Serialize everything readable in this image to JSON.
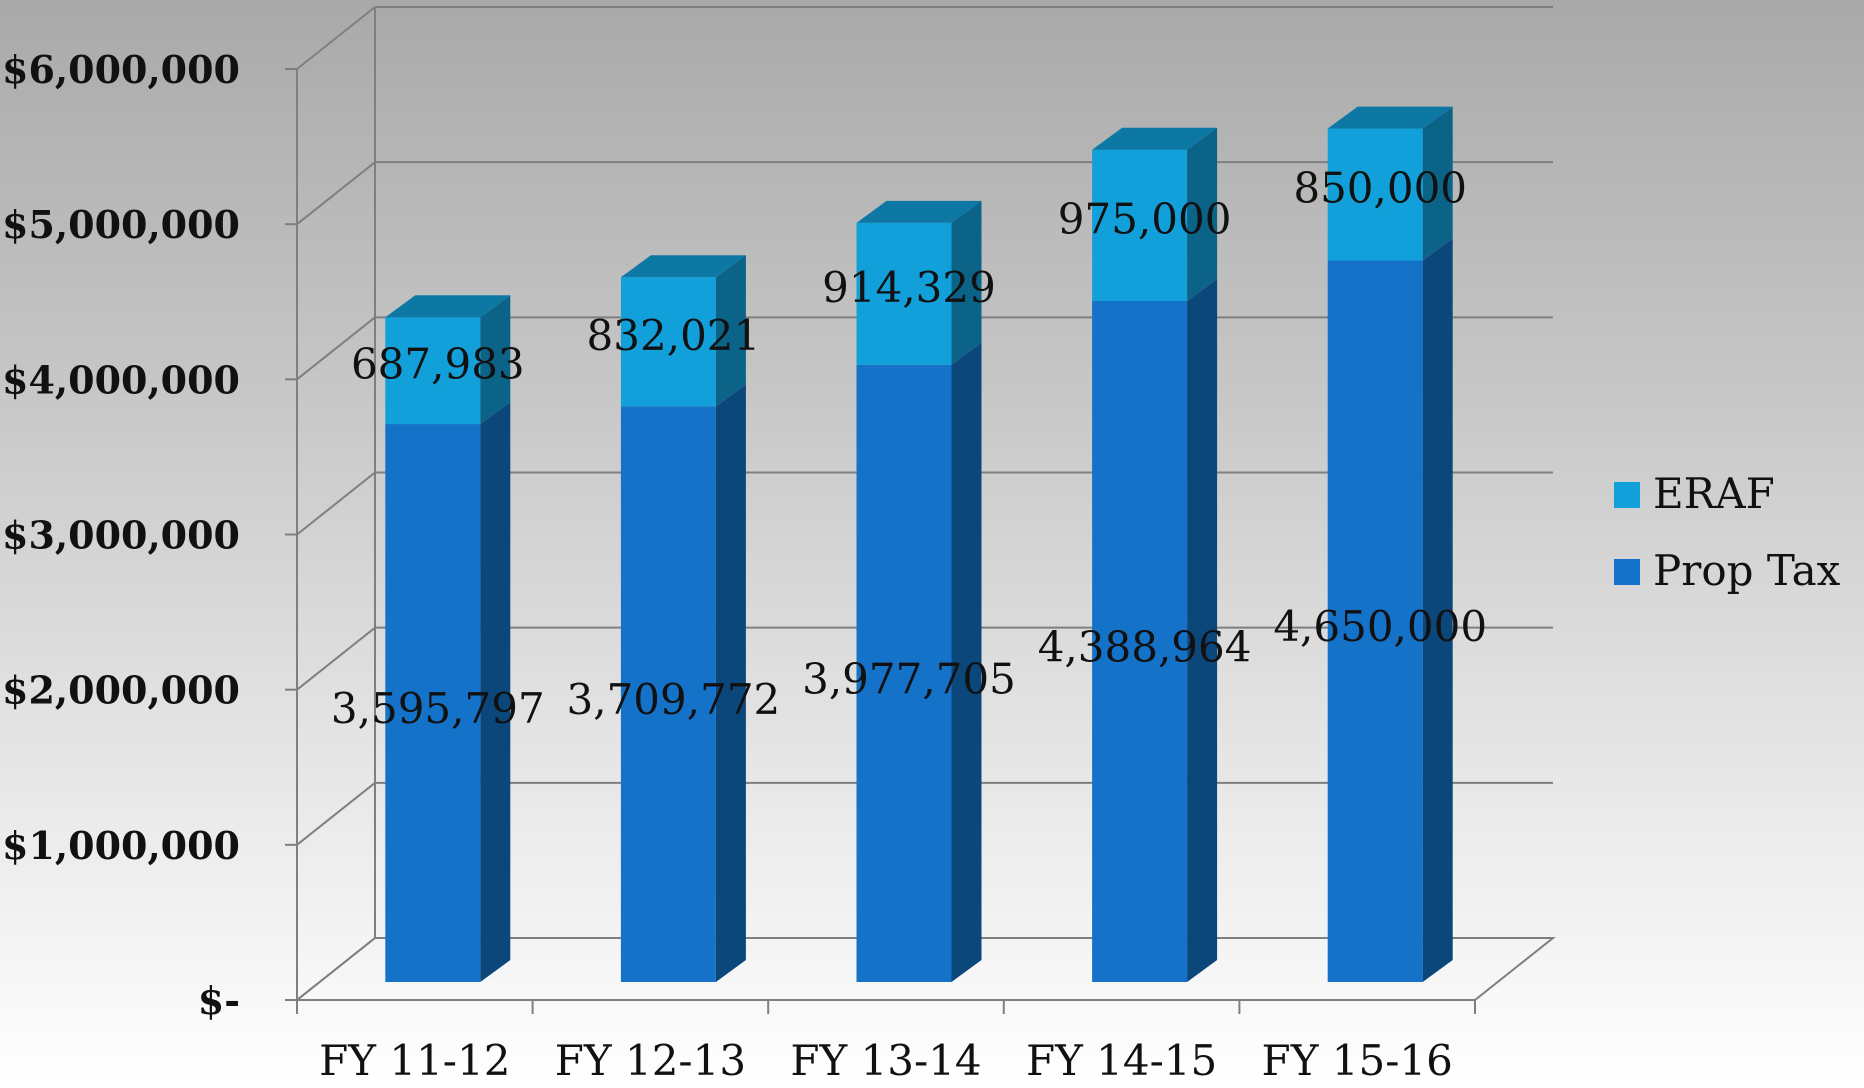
{
  "chart_data": {
    "type": "bar",
    "stacked": true,
    "style": "3d-column",
    "categories": [
      "FY 11-12",
      "FY 12-13",
      "FY 13-14",
      "FY 14-15",
      "FY 15-16"
    ],
    "series": [
      {
        "name": "Prop Tax",
        "color": "#1472c8",
        "values": [
          3595797,
          3709772,
          3977705,
          4388964,
          4650000
        ],
        "labels": [
          "3,595,797",
          "3,709,772",
          "3,977,705",
          "4,388,964",
          "4,650,000"
        ]
      },
      {
        "name": "ERAF",
        "color": "#12a0db",
        "values": [
          687983,
          832021,
          914329,
          975000,
          850000
        ],
        "labels": [
          "687,983",
          "832,021",
          "914,329",
          "975,000",
          "850,000"
        ]
      }
    ],
    "ylim": [
      0,
      6000000
    ],
    "yticks": [
      0,
      1000000,
      2000000,
      3000000,
      4000000,
      5000000,
      6000000
    ],
    "ytick_labels": [
      "$-",
      "$1,000,000",
      "$2,000,000",
      "$3,000,000",
      "$4,000,000",
      "$5,000,000",
      "$6,000,000"
    ],
    "legend": {
      "position": "right",
      "entries": [
        "ERAF",
        "Prop Tax"
      ]
    },
    "grid": true,
    "title": "",
    "xlabel": "",
    "ylabel": ""
  }
}
